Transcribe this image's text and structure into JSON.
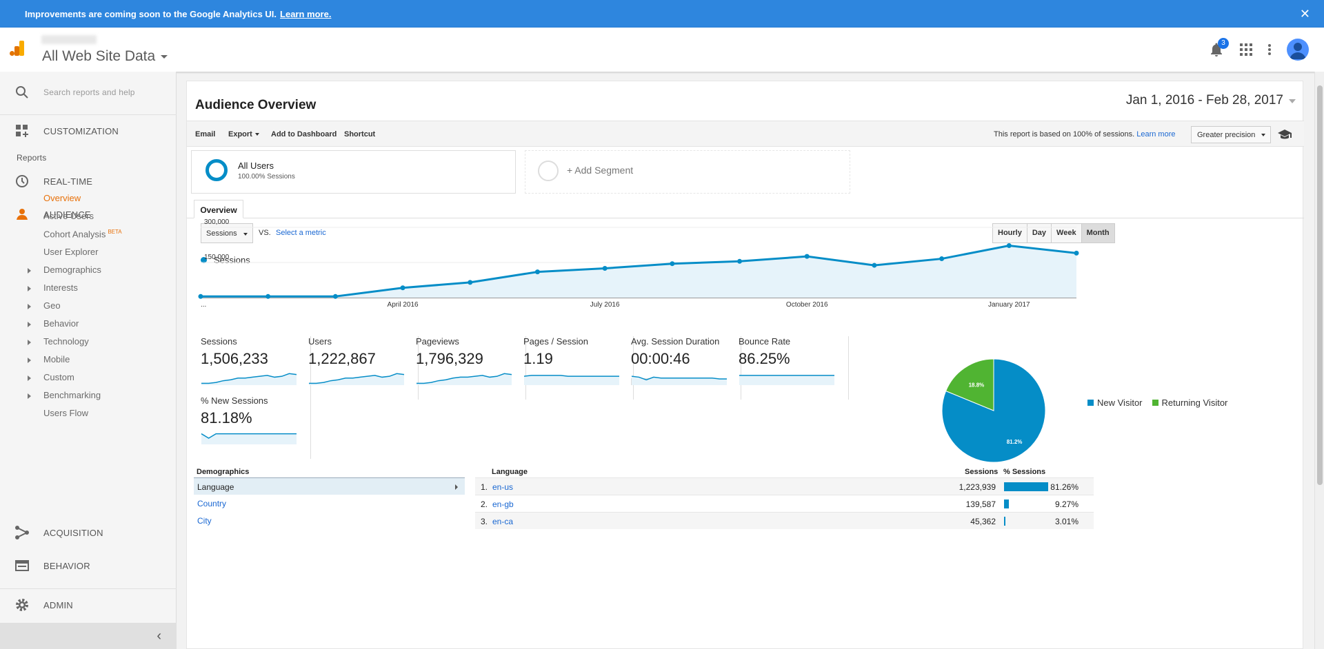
{
  "banner": {
    "text": "Improvements are coming soon to the Google Analytics UI.",
    "link": "Learn more.",
    "close": "✕"
  },
  "header": {
    "account_name": "All Web Site Data",
    "notification_count": "3"
  },
  "sidebar": {
    "search_placeholder": "Search reports and help",
    "customization": "CUSTOMIZATION",
    "reports_label": "Reports",
    "realtime": "REAL-TIME",
    "audience": "AUDIENCE",
    "audience_items": [
      {
        "label": "Overview",
        "active": true
      },
      {
        "label": "Active Users"
      },
      {
        "label": "Cohort Analysis",
        "badge": "BETA"
      },
      {
        "label": "User Explorer"
      },
      {
        "label": "Demographics",
        "expandable": true
      },
      {
        "label": "Interests",
        "expandable": true
      },
      {
        "label": "Geo",
        "expandable": true
      },
      {
        "label": "Behavior",
        "expandable": true
      },
      {
        "label": "Technology",
        "expandable": true
      },
      {
        "label": "Mobile",
        "expandable": true
      },
      {
        "label": "Custom",
        "expandable": true
      },
      {
        "label": "Benchmarking",
        "expandable": true
      },
      {
        "label": "Users Flow"
      }
    ],
    "acquisition": "ACQUISITION",
    "behavior": "BEHAVIOR",
    "admin": "ADMIN",
    "collapse": "‹"
  },
  "report": {
    "title": "Audience Overview",
    "date_range": "Jan 1, 2016 - Feb 28, 2017",
    "toolbar": {
      "email": "Email",
      "export": "Export",
      "add_dashboard": "Add to Dashboard",
      "shortcut": "Shortcut",
      "note": "This report is based on 100% of sessions.",
      "learn_more": "Learn more",
      "precision": "Greater precision"
    },
    "segment": {
      "name": "All Users",
      "sub": "100.00% Sessions",
      "add": "+ Add Segment"
    },
    "tab": "Overview",
    "metric_select": "Sessions",
    "vs": "VS.",
    "select_metric": "Select a metric",
    "granularity": [
      "Hourly",
      "Day",
      "Week",
      "Month"
    ],
    "granularity_active": "Month",
    "chart_legend": "Sessions"
  },
  "chart_data": [
    {
      "type": "area",
      "series": [
        {
          "name": "Sessions",
          "values": [
            5000,
            5000,
            5000,
            42000,
            65000,
            110000,
            125000,
            145000,
            155000,
            176000,
            138000,
            166000,
            222000,
            190000
          ]
        }
      ],
      "x": [
        "Jan 2016",
        "Feb 2016",
        "Mar 2016",
        "Apr 2016",
        "May 2016",
        "Jun 2016",
        "Jul 2016",
        "Aug 2016",
        "Sep 2016",
        "Oct 2016",
        "Nov 2016",
        "Dec 2016",
        "Jan 2017",
        "Feb 2017"
      ],
      "x_tick_labels": [
        "...",
        "April 2016",
        "July 2016",
        "October 2016",
        "January 2017"
      ],
      "y_tick_labels": [
        "300,000",
        "150,000"
      ],
      "ylim": [
        0,
        300000
      ],
      "color": "#058dc7"
    },
    {
      "type": "pie",
      "categories": [
        "New Visitor",
        "Returning Visitor"
      ],
      "values": [
        81.2,
        18.8
      ],
      "labels": [
        "81.2%",
        "18.8%"
      ],
      "colors": [
        "#058dc7",
        "#50b432"
      ]
    }
  ],
  "metrics": [
    {
      "name": "Sessions",
      "value": "1,506,233",
      "spark": [
        2,
        2,
        3,
        5,
        6,
        8,
        8,
        9,
        10,
        11,
        9,
        10,
        13,
        12
      ]
    },
    {
      "name": "Users",
      "value": "1,222,867",
      "spark": [
        2,
        2,
        3,
        5,
        6,
        8,
        8,
        9,
        10,
        11,
        9,
        10,
        13,
        12
      ]
    },
    {
      "name": "Pageviews",
      "value": "1,796,329",
      "spark": [
        2,
        2,
        3,
        5,
        6,
        8,
        9,
        9,
        10,
        11,
        9,
        10,
        13,
        12
      ]
    },
    {
      "name": "Pages / Session",
      "value": "1.19",
      "spark": [
        10,
        11,
        11,
        11,
        11,
        11,
        10,
        10,
        10,
        10,
        10,
        10,
        10,
        10
      ]
    },
    {
      "name": "Avg. Session Duration",
      "value": "00:00:46",
      "spark": [
        10,
        9,
        6,
        9,
        8,
        8,
        8,
        8,
        8,
        8,
        8,
        8,
        7,
        7
      ]
    },
    {
      "name": "Bounce Rate",
      "value": "86.25%",
      "spark": [
        11,
        11,
        11,
        11,
        11,
        11,
        11,
        11,
        11,
        11,
        11,
        11,
        11,
        11
      ]
    },
    {
      "name": "% New Sessions",
      "value": "81.18%",
      "spark": [
        12,
        7,
        12,
        12,
        12,
        12,
        12,
        12,
        12,
        12,
        12,
        12,
        12,
        12
      ]
    }
  ],
  "pie_legend": [
    "New Visitor",
    "Returning Visitor"
  ],
  "demographics": {
    "header": "Demographics",
    "items": [
      "Language",
      "Country",
      "City"
    ]
  },
  "language_table": {
    "headers": {
      "name": "Language",
      "sessions": "Sessions",
      "pct": "% Sessions"
    },
    "rows": [
      {
        "idx": "1.",
        "name": "en-us",
        "sessions": "1,223,939",
        "pct": "81.26%",
        "share": 81.26
      },
      {
        "idx": "2.",
        "name": "en-gb",
        "sessions": "139,587",
        "pct": "9.27%",
        "share": 9.27
      },
      {
        "idx": "3.",
        "name": "en-ca",
        "sessions": "45,362",
        "pct": "3.01%",
        "share": 3.01
      }
    ]
  }
}
